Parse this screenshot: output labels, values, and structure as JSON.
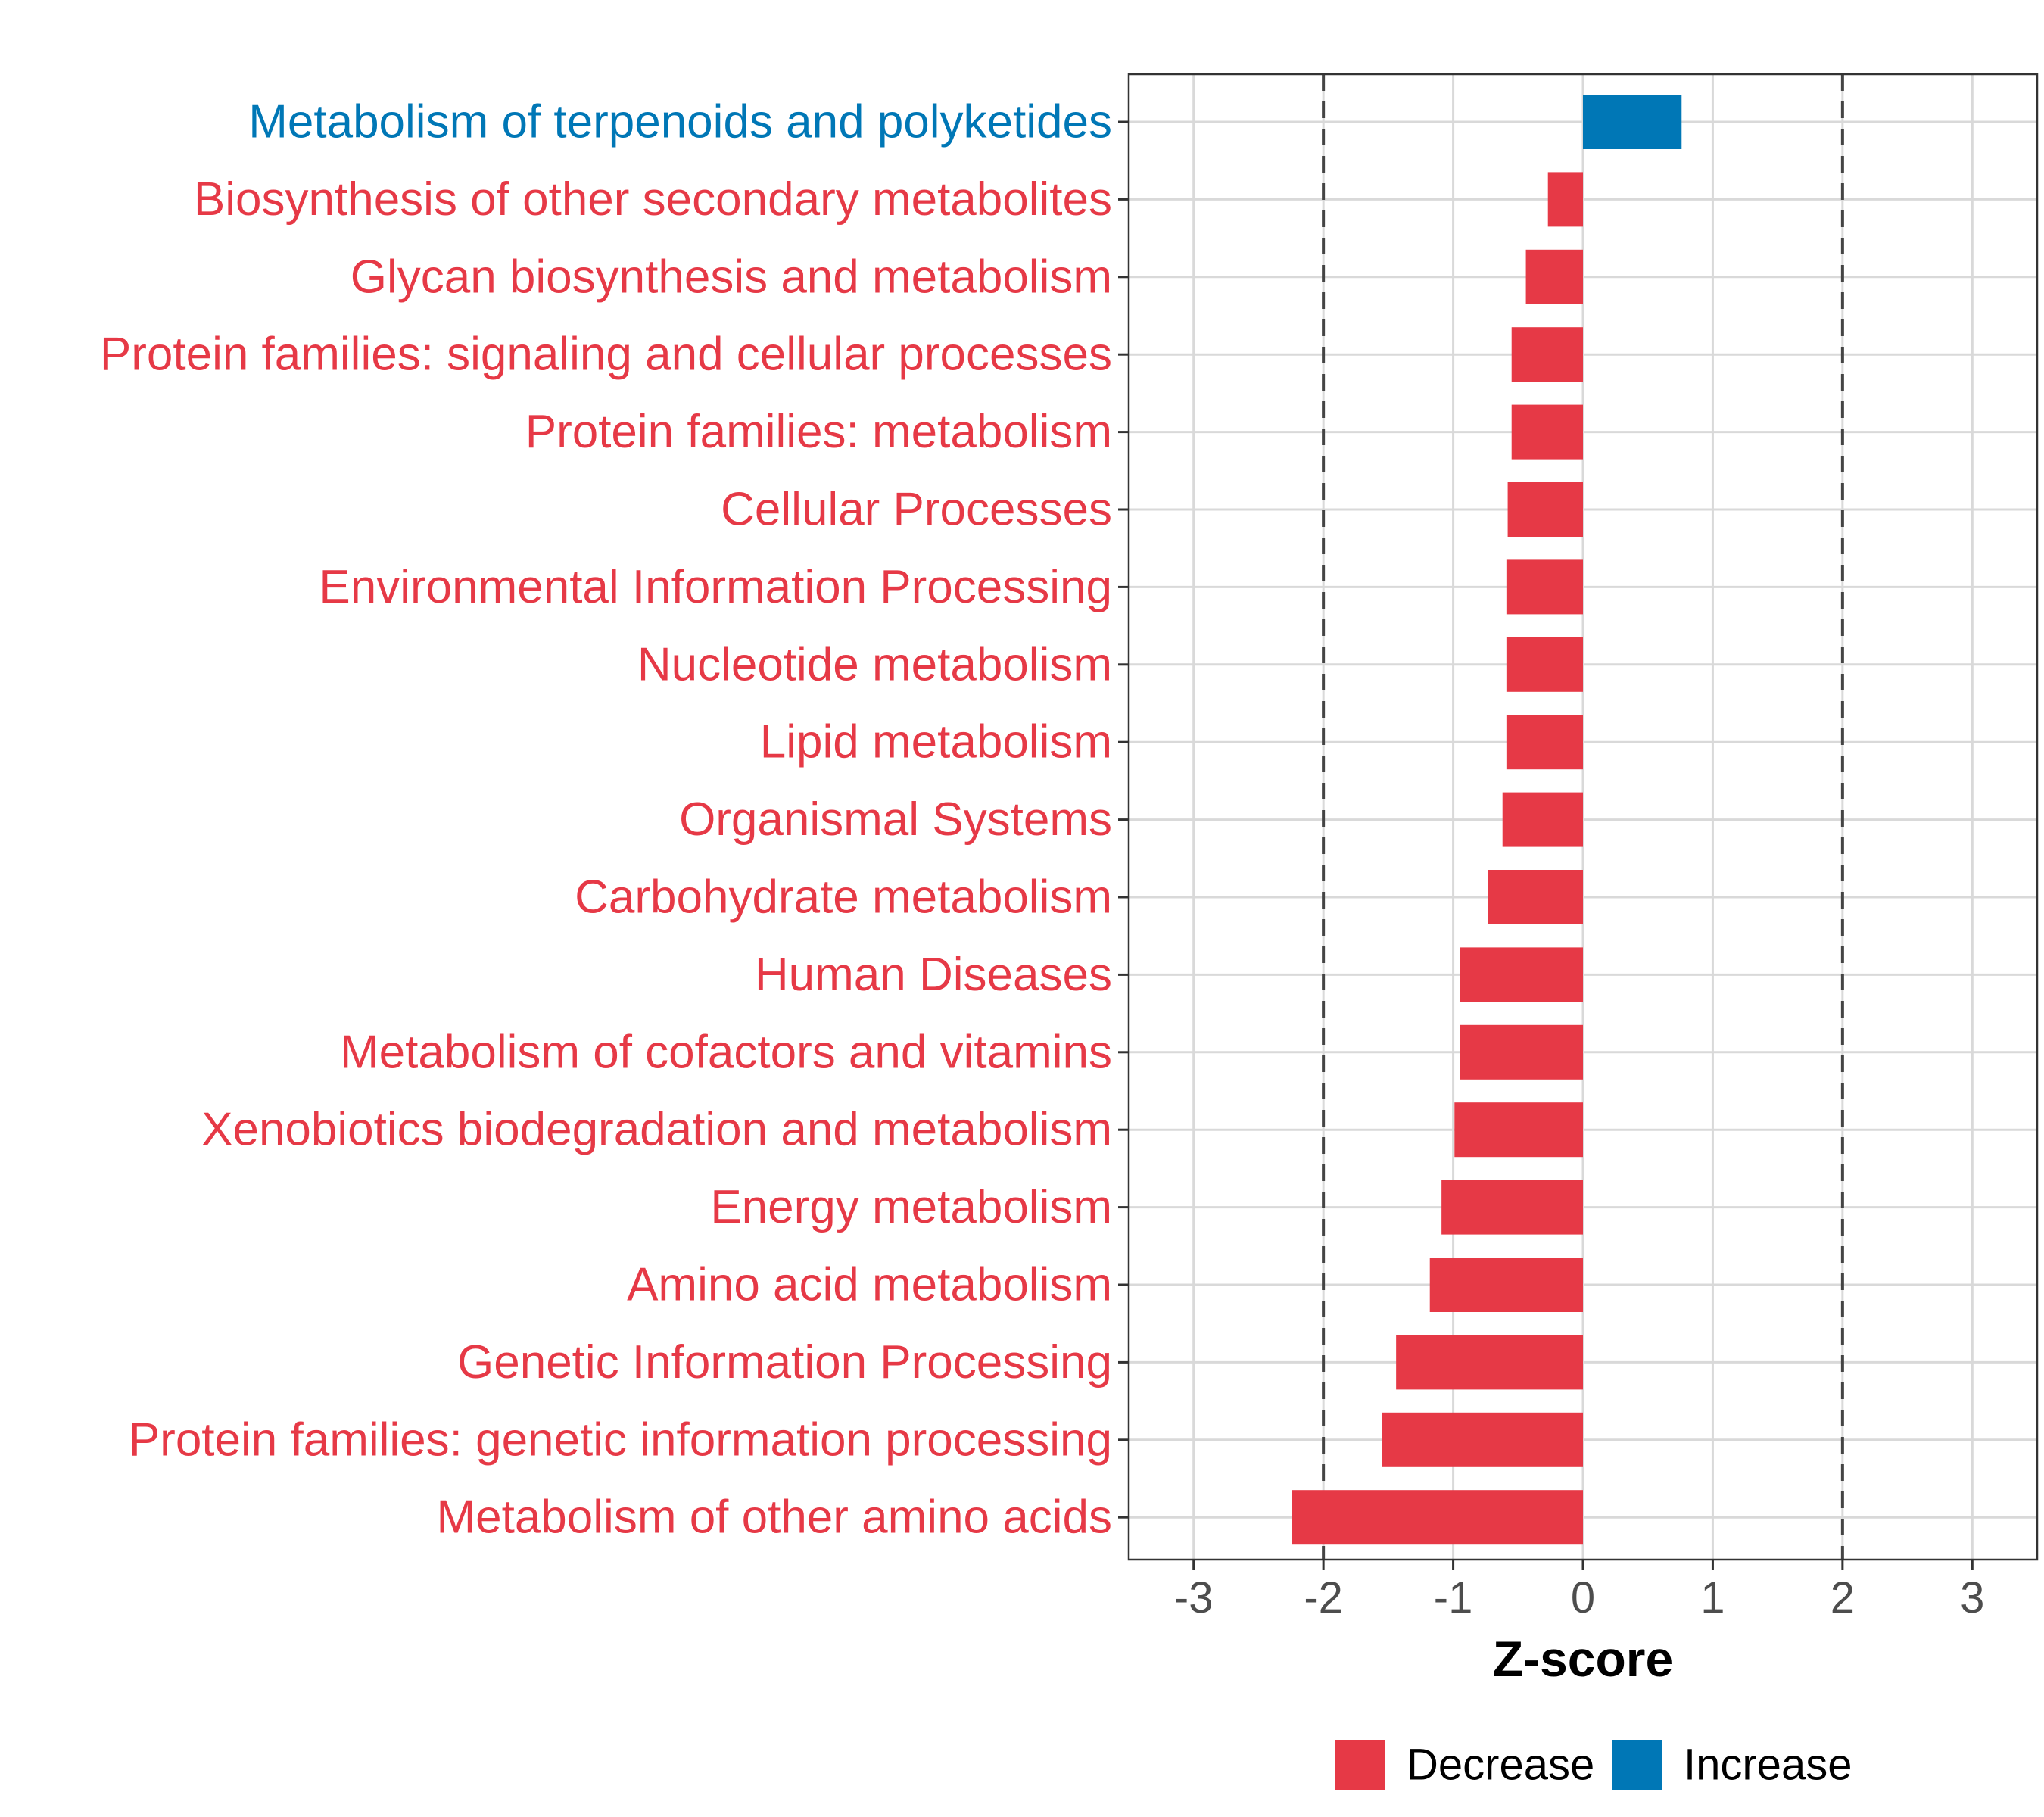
{
  "chart_data": {
    "type": "bar",
    "orientation": "horizontal",
    "title": "",
    "xlabel": "Z-score",
    "ylabel": "",
    "xlim": [
      -3.5,
      3.5
    ],
    "xticks": [
      -3,
      -2,
      -1,
      0,
      1,
      2,
      3
    ],
    "reference_lines": [
      -2,
      2
    ],
    "grid": true,
    "legend_position": "bottom",
    "colors": {
      "Decrease": "#e63946",
      "Increase": "#0077b6"
    },
    "legend": [
      {
        "label": "Decrease",
        "color": "#e63946"
      },
      {
        "label": "Increase",
        "color": "#0077b6"
      }
    ],
    "categories": [
      "Metabolism of terpenoids and polyketides",
      "Biosynthesis of other secondary metabolites",
      "Glycan biosynthesis and metabolism",
      "Protein families: signaling and cellular processes",
      "Protein families: metabolism",
      "Cellular Processes",
      "Environmental Information Processing",
      "Nucleotide metabolism",
      "Lipid metabolism",
      "Organismal Systems",
      "Carbohydrate metabolism",
      "Human Diseases",
      "Metabolism of cofactors and vitamins",
      "Xenobiotics biodegradation and metabolism",
      "Energy metabolism",
      "Amino acid metabolism",
      "Genetic Information Processing",
      "Protein families: genetic information processing",
      "Metabolism of other amino acids"
    ],
    "values": [
      0.76,
      -0.27,
      -0.44,
      -0.55,
      -0.55,
      -0.58,
      -0.59,
      -0.59,
      -0.59,
      -0.62,
      -0.73,
      -0.95,
      -0.95,
      -0.99,
      -1.09,
      -1.18,
      -1.44,
      -1.55,
      -2.24
    ],
    "groups": [
      "Increase",
      "Decrease",
      "Decrease",
      "Decrease",
      "Decrease",
      "Decrease",
      "Decrease",
      "Decrease",
      "Decrease",
      "Decrease",
      "Decrease",
      "Decrease",
      "Decrease",
      "Decrease",
      "Decrease",
      "Decrease",
      "Decrease",
      "Decrease",
      "Decrease"
    ]
  }
}
